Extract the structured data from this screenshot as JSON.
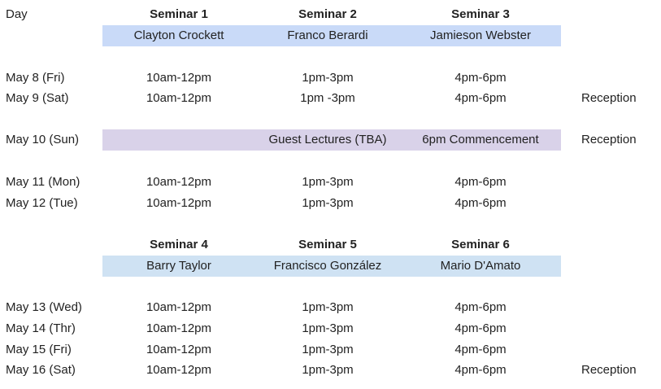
{
  "header": {
    "day_label": "Day",
    "block1": {
      "seminars": [
        "Seminar 1",
        "Seminar 2",
        "Seminar 3"
      ],
      "instructors": [
        "Clayton Crockett",
        "Franco Berardi",
        "Jamieson Webster"
      ]
    },
    "block2": {
      "seminars": [
        "Seminar 4",
        "Seminar 5",
        "Seminar 6"
      ],
      "instructors": [
        "Barry Taylor",
        "Francisco González",
        "Mario D'Amato"
      ]
    }
  },
  "rows": [
    {
      "day": "May 8 (Fri)",
      "s1": "10am-12pm",
      "s2": "1pm-3pm",
      "s3": "4pm-6pm",
      "extra": ""
    },
    {
      "day": "May 9 (Sat)",
      "s1": "10am-12pm",
      "s2": "1pm -3pm",
      "s3": "4pm-6pm",
      "extra": "Reception"
    },
    {
      "day": "May 10 (Sun)",
      "s1": "",
      "s2": "Guest Lectures (TBA)",
      "s3": "6pm Commencement",
      "extra": "Reception"
    },
    {
      "day": "May 11 (Mon)",
      "s1": "10am-12pm",
      "s2": "1pm-3pm",
      "s3": "4pm-6pm",
      "extra": ""
    },
    {
      "day": "May 12 (Tue)",
      "s1": "10am-12pm",
      "s2": "1pm-3pm",
      "s3": "4pm-6pm",
      "extra": ""
    },
    {
      "day": "May 13 (Wed)",
      "s1": "10am-12pm",
      "s2": "1pm-3pm",
      "s3": "4pm-6pm",
      "extra": ""
    },
    {
      "day": "May 14 (Thr)",
      "s1": "10am-12pm",
      "s2": "1pm-3pm",
      "s3": "4pm-6pm",
      "extra": ""
    },
    {
      "day": "May 15 (Fri)",
      "s1": "10am-12pm",
      "s2": "1pm-3pm",
      "s3": "4pm-6pm",
      "extra": ""
    },
    {
      "day": "May 16 (Sat)",
      "s1": "10am-12pm",
      "s2": "1pm-3pm",
      "s3": "4pm-6pm",
      "extra": "Reception"
    }
  ],
  "colors": {
    "band_block1": "#c9daf8",
    "band_block2": "#cfe2f3",
    "band_sunday": "#d9d2e9"
  }
}
